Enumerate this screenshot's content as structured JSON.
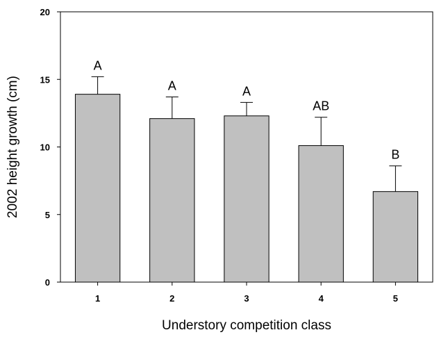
{
  "chart_data": {
    "type": "bar",
    "title": "",
    "xlabel": "Understory competition class",
    "ylabel": "2002 height growth (cm)",
    "ylim": [
      0,
      20
    ],
    "yticks": [
      0,
      5,
      10,
      15,
      20
    ],
    "categories": [
      "1",
      "2",
      "3",
      "4",
      "5"
    ],
    "values": [
      13.9,
      12.1,
      12.3,
      10.1,
      6.7
    ],
    "errors": [
      1.3,
      1.6,
      1.0,
      2.1,
      1.9
    ],
    "significance_labels": [
      "A",
      "A",
      "A",
      "AB",
      "B"
    ],
    "grid": false,
    "legend": "none",
    "colors": {
      "bar_fill": "#c0c0c0",
      "bar_stroke": "#000000"
    }
  }
}
